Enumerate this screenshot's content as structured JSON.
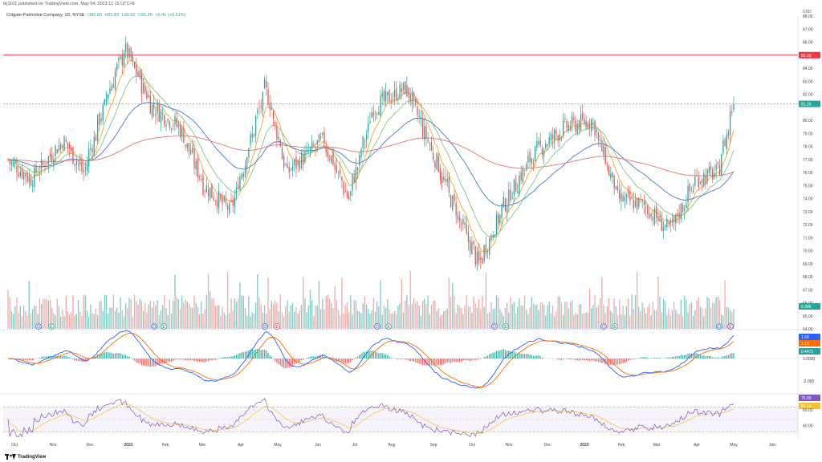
{
  "header": {
    "published": "tkj1101 published on TradingView.com, May 04, 2023 11:15 UTC+8",
    "symbol": "Colgate-Palmolive Company, 1D, NYSE",
    "open": "O80.80",
    "high": "H81.83",
    "low": "L80.62",
    "close": "C81.26",
    "change": "+0.41 (+0.51%)",
    "currency": "USD"
  },
  "colors": {
    "up": "#26a69a",
    "down": "#ef5350",
    "upVol": "#80cbc4",
    "downVol": "#f7a9a7",
    "ma_fast": "#f5a623",
    "ma_green": "#81c784",
    "ma_blue": "#4a78d0",
    "ma_red": "#e57373",
    "hline": "#f23645",
    "macd": "#2962ff",
    "signal": "#ff6d00",
    "rsi": "#7e57c2",
    "rsi_ma": "#fbc02d"
  },
  "price_axis": {
    "ticks": [
      "88.00",
      "87.00",
      "86.00",
      "84.00",
      "83.00",
      "82.00",
      "80.00",
      "79.00",
      "78.00",
      "77.00",
      "76.00",
      "75.00",
      "74.00",
      "73.00",
      "72.00",
      "71.00",
      "70.00",
      "69.00",
      "68.00",
      "67.00",
      "66.00",
      "65.00",
      "64.00"
    ],
    "hline_label": "85.00",
    "last_price": "81.26",
    "volume": "6.386"
  },
  "macd_axis": {
    "ticks": [
      "0.0000",
      "-2.000"
    ],
    "macd_label": "1.60",
    "signal_label": "1.18",
    "hist_label": "0.4471"
  },
  "rsi_axis": {
    "ticks": [
      "40.00"
    ],
    "rsi_label": "75.99",
    "ma_label": "65.19",
    "level_label": "60.00"
  },
  "x_axis": [
    "Oct",
    "Nov",
    "Dec",
    "2022",
    "Feb",
    "Mar",
    "Apr",
    "May",
    "Jun",
    "Jul",
    "Aug",
    "Sep",
    "Oct",
    "Nov",
    "Dec",
    "2023",
    "Feb",
    "Mar",
    "Apr",
    "May",
    "Jun"
  ],
  "event_badges": {
    "dividend": "D",
    "earnings": "E"
  },
  "chart_data": {
    "type": "candlestick",
    "symbol": "Colgate-Palmolive Company, 1D, NYSE",
    "hline": 85.0,
    "ylim": [
      64,
      88
    ],
    "closes_anchor": [
      {
        "date": "2021-10-01",
        "close": 77.0
      },
      {
        "date": "2021-10-20",
        "close": 75.5
      },
      {
        "date": "2021-11-15",
        "close": 78.5
      },
      {
        "date": "2021-12-01",
        "close": 76.0
      },
      {
        "date": "2021-12-20",
        "close": 82.0
      },
      {
        "date": "2022-01-03",
        "close": 85.5
      },
      {
        "date": "2022-01-25",
        "close": 81.0
      },
      {
        "date": "2022-02-15",
        "close": 79.5
      },
      {
        "date": "2022-03-07",
        "close": 75.0
      },
      {
        "date": "2022-03-28",
        "close": 73.0
      },
      {
        "date": "2022-04-25",
        "close": 82.5
      },
      {
        "date": "2022-05-12",
        "close": 76.0
      },
      {
        "date": "2022-06-10",
        "close": 78.5
      },
      {
        "date": "2022-06-30",
        "close": 74.0
      },
      {
        "date": "2022-07-20",
        "close": 81.0
      },
      {
        "date": "2022-08-15",
        "close": 82.5
      },
      {
        "date": "2022-09-01",
        "close": 78.5
      },
      {
        "date": "2022-09-28",
        "close": 72.0
      },
      {
        "date": "2022-10-12",
        "close": 69.0
      },
      {
        "date": "2022-11-01",
        "close": 73.5
      },
      {
        "date": "2022-11-25",
        "close": 77.5
      },
      {
        "date": "2022-12-20",
        "close": 79.5
      },
      {
        "date": "2023-01-10",
        "close": 80.0
      },
      {
        "date": "2023-01-31",
        "close": 74.0
      },
      {
        "date": "2023-02-20",
        "close": 73.5
      },
      {
        "date": "2023-03-13",
        "close": 71.5
      },
      {
        "date": "2023-04-03",
        "close": 75.5
      },
      {
        "date": "2023-04-20",
        "close": 76.0
      },
      {
        "date": "2023-05-03",
        "close": 81.26
      }
    ],
    "last_ohlc": {
      "open": 80.8,
      "high": 81.83,
      "low": 80.62,
      "close": 81.26
    }
  }
}
